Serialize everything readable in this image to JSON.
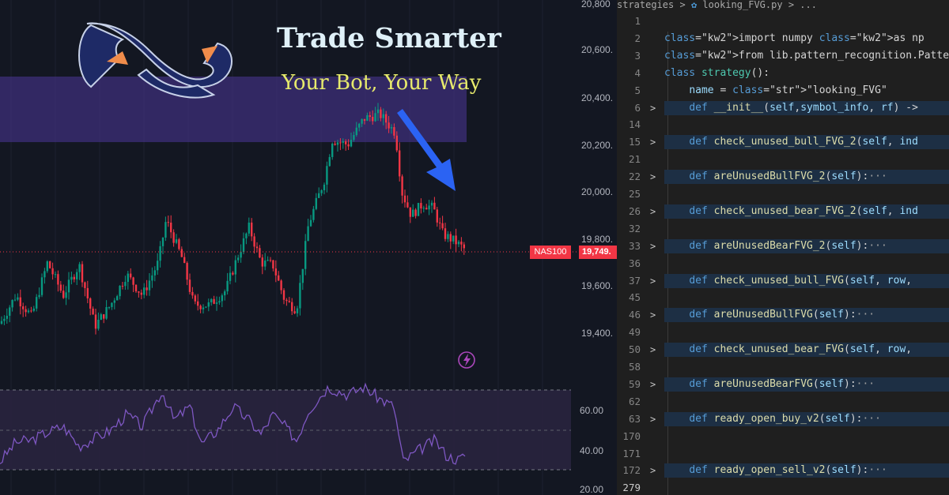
{
  "banner": {
    "title": "Trade Smarter",
    "subtitle": "Your Bot, Your Way"
  },
  "chart": {
    "price_axis_labels": [
      "20,800",
      "20,600.",
      "20,400.",
      "20,200.",
      "20,000.",
      "19,800.",
      "19,600.",
      "19,400."
    ],
    "price_values": [
      20800,
      20600,
      20400,
      20200,
      20000,
      19800,
      19600,
      19400
    ],
    "rsi_axis_labels": [
      "60.00",
      "40.00",
      "20.00"
    ],
    "rsi_values": [
      60,
      40,
      20
    ],
    "symbol_tag": "NAS100",
    "price_tag": "19,749.",
    "last_price": 19749,
    "colors": {
      "up": "#089981",
      "down": "#f23645",
      "rsi_line": "#7e57c2",
      "zone": "#3d2f7a",
      "arrow": "#2962ff"
    }
  },
  "editor": {
    "breadcrumb": {
      "folder": "strategies",
      "sep": ">",
      "file": "looking_FVG.py",
      "sep2": ">",
      "more": "..."
    },
    "lines": [
      {
        "num": "1",
        "fold": "",
        "text": ""
      },
      {
        "num": "2",
        "fold": "",
        "text": "import numpy as np"
      },
      {
        "num": "3",
        "fold": "",
        "text": "from lib.pattern_recognition.PatternRecog"
      },
      {
        "num": "4",
        "fold": "",
        "text": "class strategy():"
      },
      {
        "num": "5",
        "fold": "",
        "text": "    name = \"looking_FVG\""
      },
      {
        "num": "6",
        "fold": ">",
        "text": "    def __init__(self,symbol_info, rf) ->"
      },
      {
        "num": "14",
        "fold": "",
        "text": ""
      },
      {
        "num": "15",
        "fold": ">",
        "text": "    def check_unused_bull_FVG_2(self, ind"
      },
      {
        "num": "21",
        "fold": "",
        "text": ""
      },
      {
        "num": "22",
        "fold": ">",
        "text": "    def areUnusedBullFVG_2(self):···"
      },
      {
        "num": "25",
        "fold": "",
        "text": ""
      },
      {
        "num": "26",
        "fold": ">",
        "text": "    def check_unused_bear_FVG_2(self, ind"
      },
      {
        "num": "32",
        "fold": "",
        "text": ""
      },
      {
        "num": "33",
        "fold": ">",
        "text": "    def areUnusedBearFVG_2(self):···"
      },
      {
        "num": "36",
        "fold": "",
        "text": ""
      },
      {
        "num": "37",
        "fold": ">",
        "text": "    def check_unused_bull_FVG(self, row,"
      },
      {
        "num": "45",
        "fold": "",
        "text": ""
      },
      {
        "num": "46",
        "fold": ">",
        "text": "    def areUnusedBullFVG(self):···"
      },
      {
        "num": "49",
        "fold": "",
        "text": ""
      },
      {
        "num": "50",
        "fold": ">",
        "text": "    def check_unused_bear_FVG(self, row,"
      },
      {
        "num": "58",
        "fold": "",
        "text": ""
      },
      {
        "num": "59",
        "fold": ">",
        "text": "    def areUnusedBearFVG(self):···"
      },
      {
        "num": "62",
        "fold": "",
        "text": ""
      },
      {
        "num": "63",
        "fold": ">",
        "text": "    def ready_open_buy_v2(self):···"
      },
      {
        "num": "170",
        "fold": "",
        "text": ""
      },
      {
        "num": "171",
        "fold": "",
        "text": ""
      },
      {
        "num": "172",
        "fold": ">",
        "text": "    def ready_open_sell_v2(self):···"
      },
      {
        "num": "279",
        "fold": "",
        "text": ""
      }
    ]
  }
}
